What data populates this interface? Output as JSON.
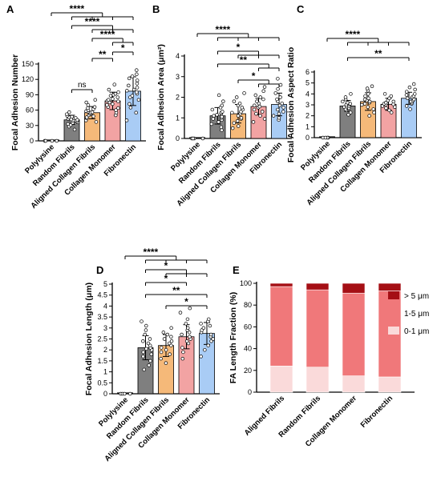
{
  "colors": {
    "polylysine": "#404040",
    "random_fibrils": "#7f7f7f",
    "aligned_collagen_fibrils": "#f5b979",
    "collagen_monomer": "#f2a3a3",
    "fibronectin": "#a9ccf5",
    "gt5": "#a50f15",
    "range1_5": "#f0787a",
    "range0_1": "#fadada"
  },
  "chart_data": [
    {
      "panel": "A",
      "type": "bar",
      "ylabel": "Focal Adhesion Number",
      "ylim": [
        0,
        150
      ],
      "yticks": [
        0,
        30,
        60,
        90,
        120,
        150
      ],
      "categories": [
        "Polylysine",
        "Random Fibrils",
        "Aligned Collagen Fibrils",
        "Collagen Monomer",
        "Fibronectin"
      ],
      "values": [
        0,
        41,
        55,
        78,
        97
      ],
      "errors": [
        0,
        9,
        12,
        17,
        28
      ],
      "points": [
        [
          0,
          0,
          0,
          0
        ],
        [
          22,
          28,
          31,
          33,
          35,
          36,
          38,
          39,
          40,
          40,
          41,
          42,
          43,
          44,
          45,
          46,
          47,
          49,
          52,
          56
        ],
        [
          37,
          40,
          44,
          46,
          48,
          50,
          52,
          53,
          55,
          56,
          57,
          58,
          60,
          62,
          64,
          66,
          70,
          75,
          80
        ],
        [
          50,
          55,
          60,
          64,
          66,
          70,
          72,
          75,
          77,
          78,
          80,
          82,
          85,
          88,
          90,
          92,
          95,
          100,
          110
        ],
        [
          40,
          55,
          65,
          72,
          80,
          85,
          88,
          92,
          95,
          98,
          100,
          104,
          108,
          112,
          118,
          122,
          126,
          130,
          138
        ]
      ],
      "comparisons": [
        {
          "from": 0,
          "to": [
            1,
            2,
            3,
            4
          ],
          "label": "****"
        },
        {
          "from": 1,
          "to": [
            2,
            3,
            4
          ],
          "label": "****"
        },
        {
          "from": 2,
          "to": [
            3,
            4
          ],
          "label": "****"
        },
        {
          "from": 3,
          "to": [
            4
          ],
          "label": "*"
        },
        {
          "from": 2,
          "to": [
            3
          ],
          "label": "**"
        },
        {
          "from": 1,
          "to": [
            2
          ],
          "label": "ns"
        }
      ]
    },
    {
      "panel": "B",
      "type": "bar",
      "ylabel": "Focal Adhesion Area (μm²)",
      "ylim": [
        0,
        4
      ],
      "yticks": [
        0,
        1,
        2,
        3,
        4
      ],
      "categories": [
        "Polylysine",
        "Random Fibrils",
        "Aligned Collagen Fibrils",
        "Collagen Monomer",
        "Fibronectin"
      ],
      "values": [
        0.02,
        1.1,
        1.2,
        1.55,
        1.65
      ],
      "errors": [
        0,
        0.4,
        0.45,
        0.4,
        0.55
      ],
      "points": [
        [
          0,
          0,
          0,
          0
        ],
        [
          0.4,
          0.55,
          0.7,
          0.8,
          0.9,
          0.95,
          1.0,
          1.05,
          1.1,
          1.15,
          1.2,
          1.25,
          1.3,
          1.4,
          1.5,
          1.6,
          1.8,
          2.1
        ],
        [
          0.5,
          0.6,
          0.75,
          0.85,
          0.95,
          1.0,
          1.1,
          1.2,
          1.25,
          1.3,
          1.4,
          1.5,
          1.6,
          1.7,
          1.8,
          2.0,
          2.2
        ],
        [
          0.8,
          0.95,
          1.1,
          1.2,
          1.3,
          1.4,
          1.5,
          1.55,
          1.6,
          1.7,
          1.8,
          1.9,
          2.0,
          2.1,
          2.3,
          2.5
        ],
        [
          0.9,
          1.0,
          1.1,
          1.2,
          1.3,
          1.4,
          1.5,
          1.6,
          1.7,
          1.8,
          1.9,
          2.0,
          2.2,
          2.4,
          2.6,
          2.9
        ]
      ],
      "comparisons": [
        {
          "from": 0,
          "to": [
            1,
            2,
            3,
            4
          ],
          "label": "****"
        },
        {
          "from": 1,
          "to": [
            2,
            3,
            4
          ],
          "label": "*"
        },
        {
          "from": 1,
          "to": [
            3,
            4
          ],
          "label": "**"
        },
        {
          "from": 2,
          "to": [
            3,
            4
          ],
          "label": "*"
        }
      ]
    },
    {
      "panel": "C",
      "type": "bar",
      "ylabel": "Focal Adhesion Aspect Ratio",
      "ylim": [
        0,
        6
      ],
      "yticks": [
        0,
        1,
        2,
        3,
        4,
        5,
        6
      ],
      "categories": [
        "Polylysine",
        "Random Fibrils",
        "Aligned Collagen Fibrils",
        "Collagen Monomer",
        "Fibronectin"
      ],
      "values": [
        0.05,
        2.9,
        3.3,
        3.05,
        3.6
      ],
      "errors": [
        0,
        0.5,
        0.8,
        0.55,
        0.55
      ],
      "points": [
        [
          0,
          0,
          0,
          0
        ],
        [
          2.1,
          2.3,
          2.5,
          2.6,
          2.7,
          2.8,
          2.85,
          2.9,
          3.0,
          3.05,
          3.1,
          3.2,
          3.3,
          3.5,
          3.7,
          4.0
        ],
        [
          2.0,
          2.3,
          2.6,
          2.8,
          3.0,
          3.1,
          3.2,
          3.3,
          3.4,
          3.5,
          3.6,
          3.8,
          4.0,
          4.3,
          4.5,
          4.7
        ],
        [
          2.3,
          2.5,
          2.7,
          2.8,
          2.9,
          3.0,
          3.05,
          3.1,
          3.2,
          3.3,
          3.4,
          3.6,
          3.8,
          4.0
        ],
        [
          2.6,
          2.9,
          3.1,
          3.2,
          3.3,
          3.4,
          3.5,
          3.6,
          3.7,
          3.8,
          3.9,
          4.0,
          4.2,
          4.4,
          4.6,
          4.9
        ]
      ],
      "comparisons": [
        {
          "from": 0,
          "to": [
            1,
            2,
            3,
            4
          ],
          "label": "****"
        },
        {
          "from": 1,
          "to": [
            4
          ],
          "label": "**"
        }
      ]
    },
    {
      "panel": "D",
      "type": "bar",
      "ylabel": "Focal Adhesion Length (μm)",
      "ylim": [
        0,
        5
      ],
      "yticks": [
        0,
        0.5,
        1,
        1.5,
        2,
        2.5,
        3,
        3.5,
        4,
        4.5,
        5
      ],
      "categories": [
        "Polylysine",
        "Random Fibrils",
        "Aligned Collagen Fibrils",
        "Collagen Monomer",
        "Fibronectin"
      ],
      "values": [
        0.03,
        2.1,
        2.2,
        2.6,
        2.75
      ],
      "errors": [
        0,
        0.55,
        0.5,
        0.55,
        0.5
      ],
      "points": [
        [
          0,
          0,
          0,
          0
        ],
        [
          1.1,
          1.3,
          1.5,
          1.7,
          1.8,
          1.9,
          2.0,
          2.05,
          2.1,
          2.2,
          2.3,
          2.4,
          2.5,
          2.7,
          2.9,
          3.1,
          3.3
        ],
        [
          1.4,
          1.6,
          1.8,
          1.9,
          2.0,
          2.1,
          2.2,
          2.3,
          2.4,
          2.5,
          2.6,
          2.7,
          2.8,
          3.0
        ],
        [
          1.6,
          1.9,
          2.1,
          2.3,
          2.4,
          2.5,
          2.6,
          2.7,
          2.8,
          2.9,
          3.0,
          3.2,
          3.4,
          3.7,
          3.9
        ],
        [
          1.7,
          2.0,
          2.2,
          2.4,
          2.5,
          2.6,
          2.7,
          2.8,
          2.9,
          3.0,
          3.1,
          3.2,
          3.3,
          3.4
        ]
      ],
      "comparisons": [
        {
          "from": 0,
          "to": [
            1,
            2,
            3,
            4
          ],
          "label": "****"
        },
        {
          "from": 1,
          "to": [
            2,
            3,
            4
          ],
          "label": "*"
        },
        {
          "from": 1,
          "to": [
            3
          ],
          "label": "*"
        },
        {
          "from": 1,
          "to": [
            4
          ],
          "label": "**"
        },
        {
          "from": 2,
          "to": [
            4
          ],
          "label": "*"
        }
      ]
    },
    {
      "panel": "E",
      "type": "stacked_bar",
      "ylabel": "FA Length Fraction (%)",
      "ylim": [
        0,
        100
      ],
      "yticks": [
        0,
        20,
        40,
        60,
        80,
        100
      ],
      "categories": [
        "Aligned Fibrils",
        "Random Fibrils",
        "Collagen Monomer",
        "Fibronectin"
      ],
      "series": [
        {
          "name": "0-1 μm",
          "values": [
            24,
            23,
            15,
            14
          ]
        },
        {
          "name": "1-5 μm",
          "values": [
            73,
            71,
            76,
            79
          ]
        },
        {
          "name": ">5 μm",
          "values": [
            3,
            6,
            9,
            7
          ]
        }
      ],
      "legend": [
        "> 5 μm",
        "1-5 μm",
        "0-1 μm"
      ],
      "legend_position": "right"
    }
  ]
}
